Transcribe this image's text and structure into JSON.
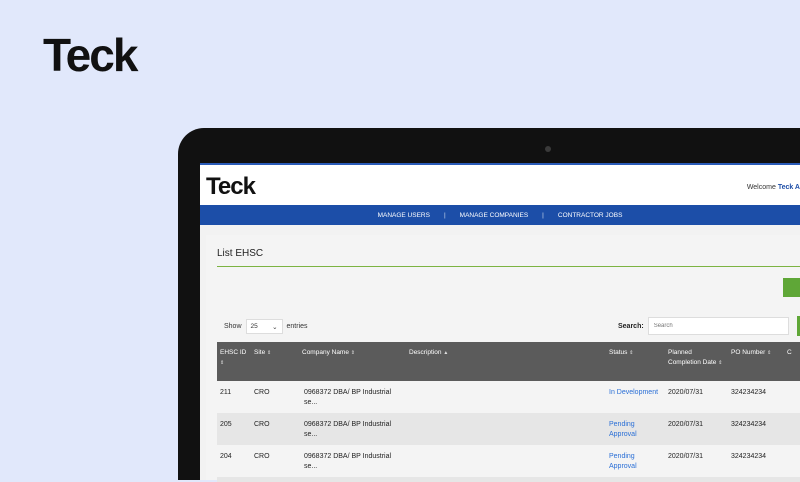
{
  "brand": "Teck",
  "app": {
    "logo": "Teck",
    "welcome": "Welcome",
    "user": "Teck A",
    "nav": [
      "MANAGE USERS",
      "MANAGE COMPANIES",
      "CONTRACTOR JOBS"
    ],
    "page_title": "List EHSC",
    "show_label": "Show",
    "entries_value": "25",
    "entries_label": "entries",
    "search_label": "Search:",
    "search_placeholder": "Search",
    "columns": [
      "EHSC ID",
      "Site",
      "Company Name",
      "Description",
      "Status",
      "Planned Completion Date",
      "PO Number",
      "C"
    ],
    "rows": [
      {
        "id": "211",
        "site": "CRO",
        "company": "0968372 DBA/ BP Industrial se...",
        "description": "",
        "status": "In Development",
        "date": "2020/07/31",
        "po": "324234234"
      },
      {
        "id": "205",
        "site": "CRO",
        "company": "0968372 DBA/ BP Industrial se...",
        "description": "",
        "status": "Pending Approval",
        "date": "2020/07/31",
        "po": "324234234"
      },
      {
        "id": "204",
        "site": "CRO",
        "company": "0968372 DBA/ BP Industrial se...",
        "description": "",
        "status": "Pending Approval",
        "date": "2020/07/31",
        "po": "324234234"
      }
    ]
  },
  "colors": {
    "background": "#e1e8fb",
    "nav": "#1c4ea8",
    "accent_green": "#5fa737",
    "header_row": "#5b5b5b",
    "status_link": "#2a6fd6"
  }
}
